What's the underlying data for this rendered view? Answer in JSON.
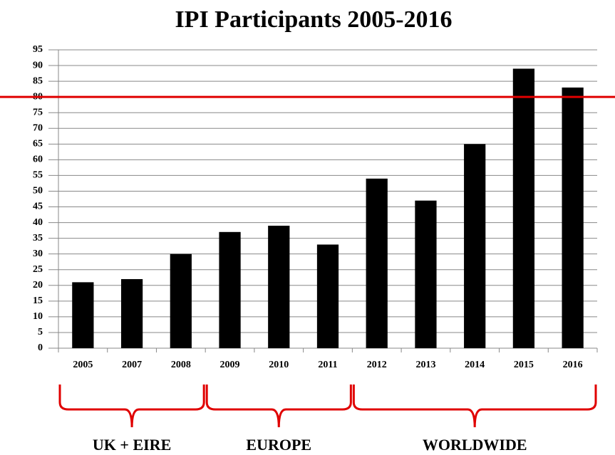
{
  "chart_data": {
    "type": "bar",
    "title": "IPI Participants 2005-2016",
    "categories": [
      "2005",
      "2007",
      "2008",
      "2009",
      "2010",
      "2011",
      "2012",
      "2013",
      "2014",
      "2015",
      "2016"
    ],
    "values": [
      21,
      22,
      30,
      37,
      39,
      33,
      54,
      47,
      65,
      89,
      83
    ],
    "color": "#000000",
    "ylim": [
      0,
      95
    ],
    "yticks": [
      0,
      5,
      10,
      15,
      20,
      25,
      30,
      35,
      40,
      45,
      50,
      55,
      60,
      65,
      70,
      75,
      80,
      85,
      90,
      95
    ],
    "grid": true,
    "reference_line": {
      "value": 80,
      "color": "#e00000"
    },
    "groups": [
      {
        "label": "UK + EIRE",
        "first": "2005",
        "last": "2008"
      },
      {
        "label": "EUROPE",
        "first": "2009",
        "last": "2011"
      },
      {
        "label": "WORLDWIDE",
        "first": "2012",
        "last": "2016"
      }
    ]
  }
}
